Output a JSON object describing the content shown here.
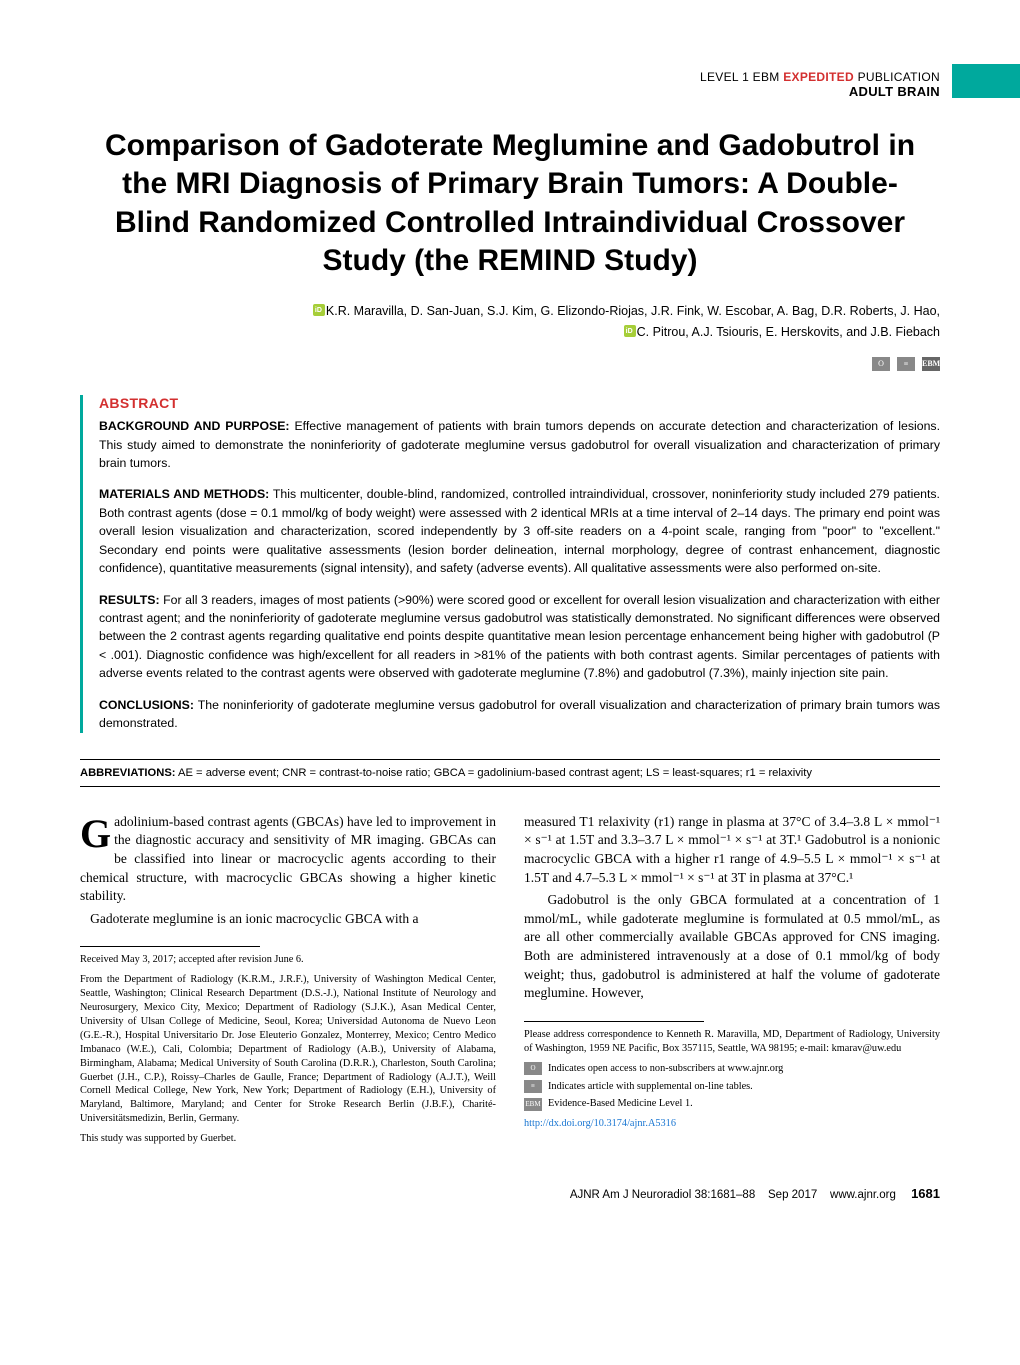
{
  "header": {
    "category_prefix": "LEVEL 1 EBM ",
    "expedited": "EXPEDITED",
    "category_suffix": " PUBLICATION",
    "section": "ADULT BRAIN"
  },
  "title": "Comparison of Gadoterate Meglumine and Gadobutrol in the MRI Diagnosis of Primary Brain Tumors: A Double-Blind Randomized Controlled Intraindividual Crossover Study (the REMIND Study)",
  "authors_line1": "K.R. Maravilla, D. San-Juan, S.J. Kim, G. Elizondo-Riojas, J.R. Fink, W. Escobar, A. Bag, D.R. Roberts, J. Hao,",
  "authors_line2": "C. Pitrou, A.J. Tsiouris, E. Herskovits, and J.B. Fiebach",
  "abstract": {
    "heading": "ABSTRACT",
    "background_label": "BACKGROUND AND PURPOSE:",
    "background": "Effective management of patients with brain tumors depends on accurate detection and characterization of lesions. This study aimed to demonstrate the noninferiority of gadoterate meglumine versus gadobutrol for overall visualization and characterization of primary brain tumors.",
    "methods_label": "MATERIALS AND METHODS:",
    "methods": "This multicenter, double-blind, randomized, controlled intraindividual, crossover, noninferiority study included 279 patients. Both contrast agents (dose = 0.1 mmol/kg of body weight) were assessed with 2 identical MRIs at a time interval of 2–14 days. The primary end point was overall lesion visualization and characterization, scored independently by 3 off-site readers on a 4-point scale, ranging from \"poor\" to \"excellent.\" Secondary end points were qualitative assessments (lesion border delineation, internal morphology, degree of contrast enhancement, diagnostic confidence), quantitative measurements (signal intensity), and safety (adverse events). All qualitative assessments were also performed on-site.",
    "results_label": "RESULTS:",
    "results": "For all 3 readers, images of most patients (>90%) were scored good or excellent for overall lesion visualization and characterization with either contrast agent; and the noninferiority of gadoterate meglumine versus gadobutrol was statistically demonstrated. No significant differences were observed between the 2 contrast agents regarding qualitative end points despite quantitative mean lesion percentage enhancement being higher with gadobutrol (P < .001). Diagnostic confidence was high/excellent for all readers in >81% of the patients with both contrast agents. Similar percentages of patients with adverse events related to the contrast agents were observed with gadoterate meglumine (7.8%) and gadobutrol (7.3%), mainly injection site pain.",
    "conclusions_label": "CONCLUSIONS:",
    "conclusions": "The noninferiority of gadoterate meglumine versus gadobutrol for overall visualization and characterization of primary brain tumors was demonstrated."
  },
  "abbreviations": {
    "label": "ABBREVIATIONS:",
    "text": "AE = adverse event; CNR = contrast-to-noise ratio; GBCA = gadolinium-based contrast agent; LS = least-squares; r1 = relaxivity"
  },
  "body": {
    "col1_p1": "adolinium-based contrast agents (GBCAs) have led to improvement in the diagnostic accuracy and sensitivity of MR imaging. GBCAs can be classified into linear or macrocyclic agents according to their chemical structure, with macrocyclic GBCAs showing a higher kinetic stability.",
    "col1_p2": "Gadoterate meglumine is an ionic macrocyclic GBCA with a",
    "col2_p1": "measured T1 relaxivity (r1) range in plasma at 37°C of 3.4–3.8 L × mmol⁻¹ × s⁻¹ at 1.5T and 3.3–3.7 L × mmol⁻¹ × s⁻¹ at 3T.¹ Gadobutrol is a nonionic macrocyclic GBCA with a higher r1 range of 4.9–5.5 L × mmol⁻¹ × s⁻¹ at 1.5T and 4.7–5.3 L × mmol⁻¹ × s⁻¹ at 3T in plasma at 37°C.¹",
    "col2_p2": "Gadobutrol is the only GBCA formulated at a concentration of 1 mmol/mL, while gadoterate meglumine is formulated at 0.5 mmol/mL, as are all other commercially available GBCAs approved for CNS imaging. Both are administered intravenously at a dose of 0.1 mmol/kg of body weight; thus, gadobutrol is administered at half the volume of gadoterate meglumine. However,"
  },
  "footnotes": {
    "received": "Received May 3, 2017; accepted after revision June 6.",
    "from": "From the Department of Radiology (K.R.M., J.R.F.), University of Washington Medical Center, Seattle, Washington; Clinical Research Department (D.S.-J.), National Institute of Neurology and Neurosurgery, Mexico City, Mexico; Department of Radiology (S.J.K.), Asan Medical Center, University of Ulsan College of Medicine, Seoul, Korea; Universidad Autonoma de Nuevo Leon (G.E.-R.), Hospital Universitario Dr. Jose Eleuterio Gonzalez, Monterrey, Mexico; Centro Medico Imbanaco (W.E.), Cali, Colombia; Department of Radiology (A.B.), University of Alabama, Birmingham, Alabama; Medical University of South Carolina (D.R.R.), Charleston, South Carolina; Guerbet (J.H., C.P.), Roissy–Charles de Gaulle, France; Department of Radiology (A.J.T.), Weill Cornell Medical College, New York, New York; Department of Radiology (E.H.), University of Maryland, Baltimore, Maryland; and Center for Stroke Research Berlin (J.B.F.), Charité-Universitätsmedizin, Berlin, Germany.",
    "supported": "This study was supported by Guerbet.",
    "correspondence": "Please address correspondence to Kenneth R. Maravilla, MD, Department of Radiology, University of Washington, 1959 NE Pacific, Box 357115, Seattle, WA 98195; e-mail: kmarav@uw.edu",
    "openaccess": "Indicates open access to non-subscribers at www.ajnr.org",
    "supplement": "Indicates article with supplemental on-line tables.",
    "ebm": "Evidence-Based Medicine Level 1.",
    "doi": "http://dx.doi.org/10.3174/ajnr.A5316"
  },
  "footer": {
    "journal": "AJNR Am J Neuroradiol 38:1681–88",
    "date": "Sep 2017",
    "url": "www.ajnr.org",
    "page": "1681"
  },
  "colors": {
    "teal": "#00a99d",
    "red": "#d32f2f",
    "orcid": "#a6ce39",
    "link": "#1976d2"
  }
}
